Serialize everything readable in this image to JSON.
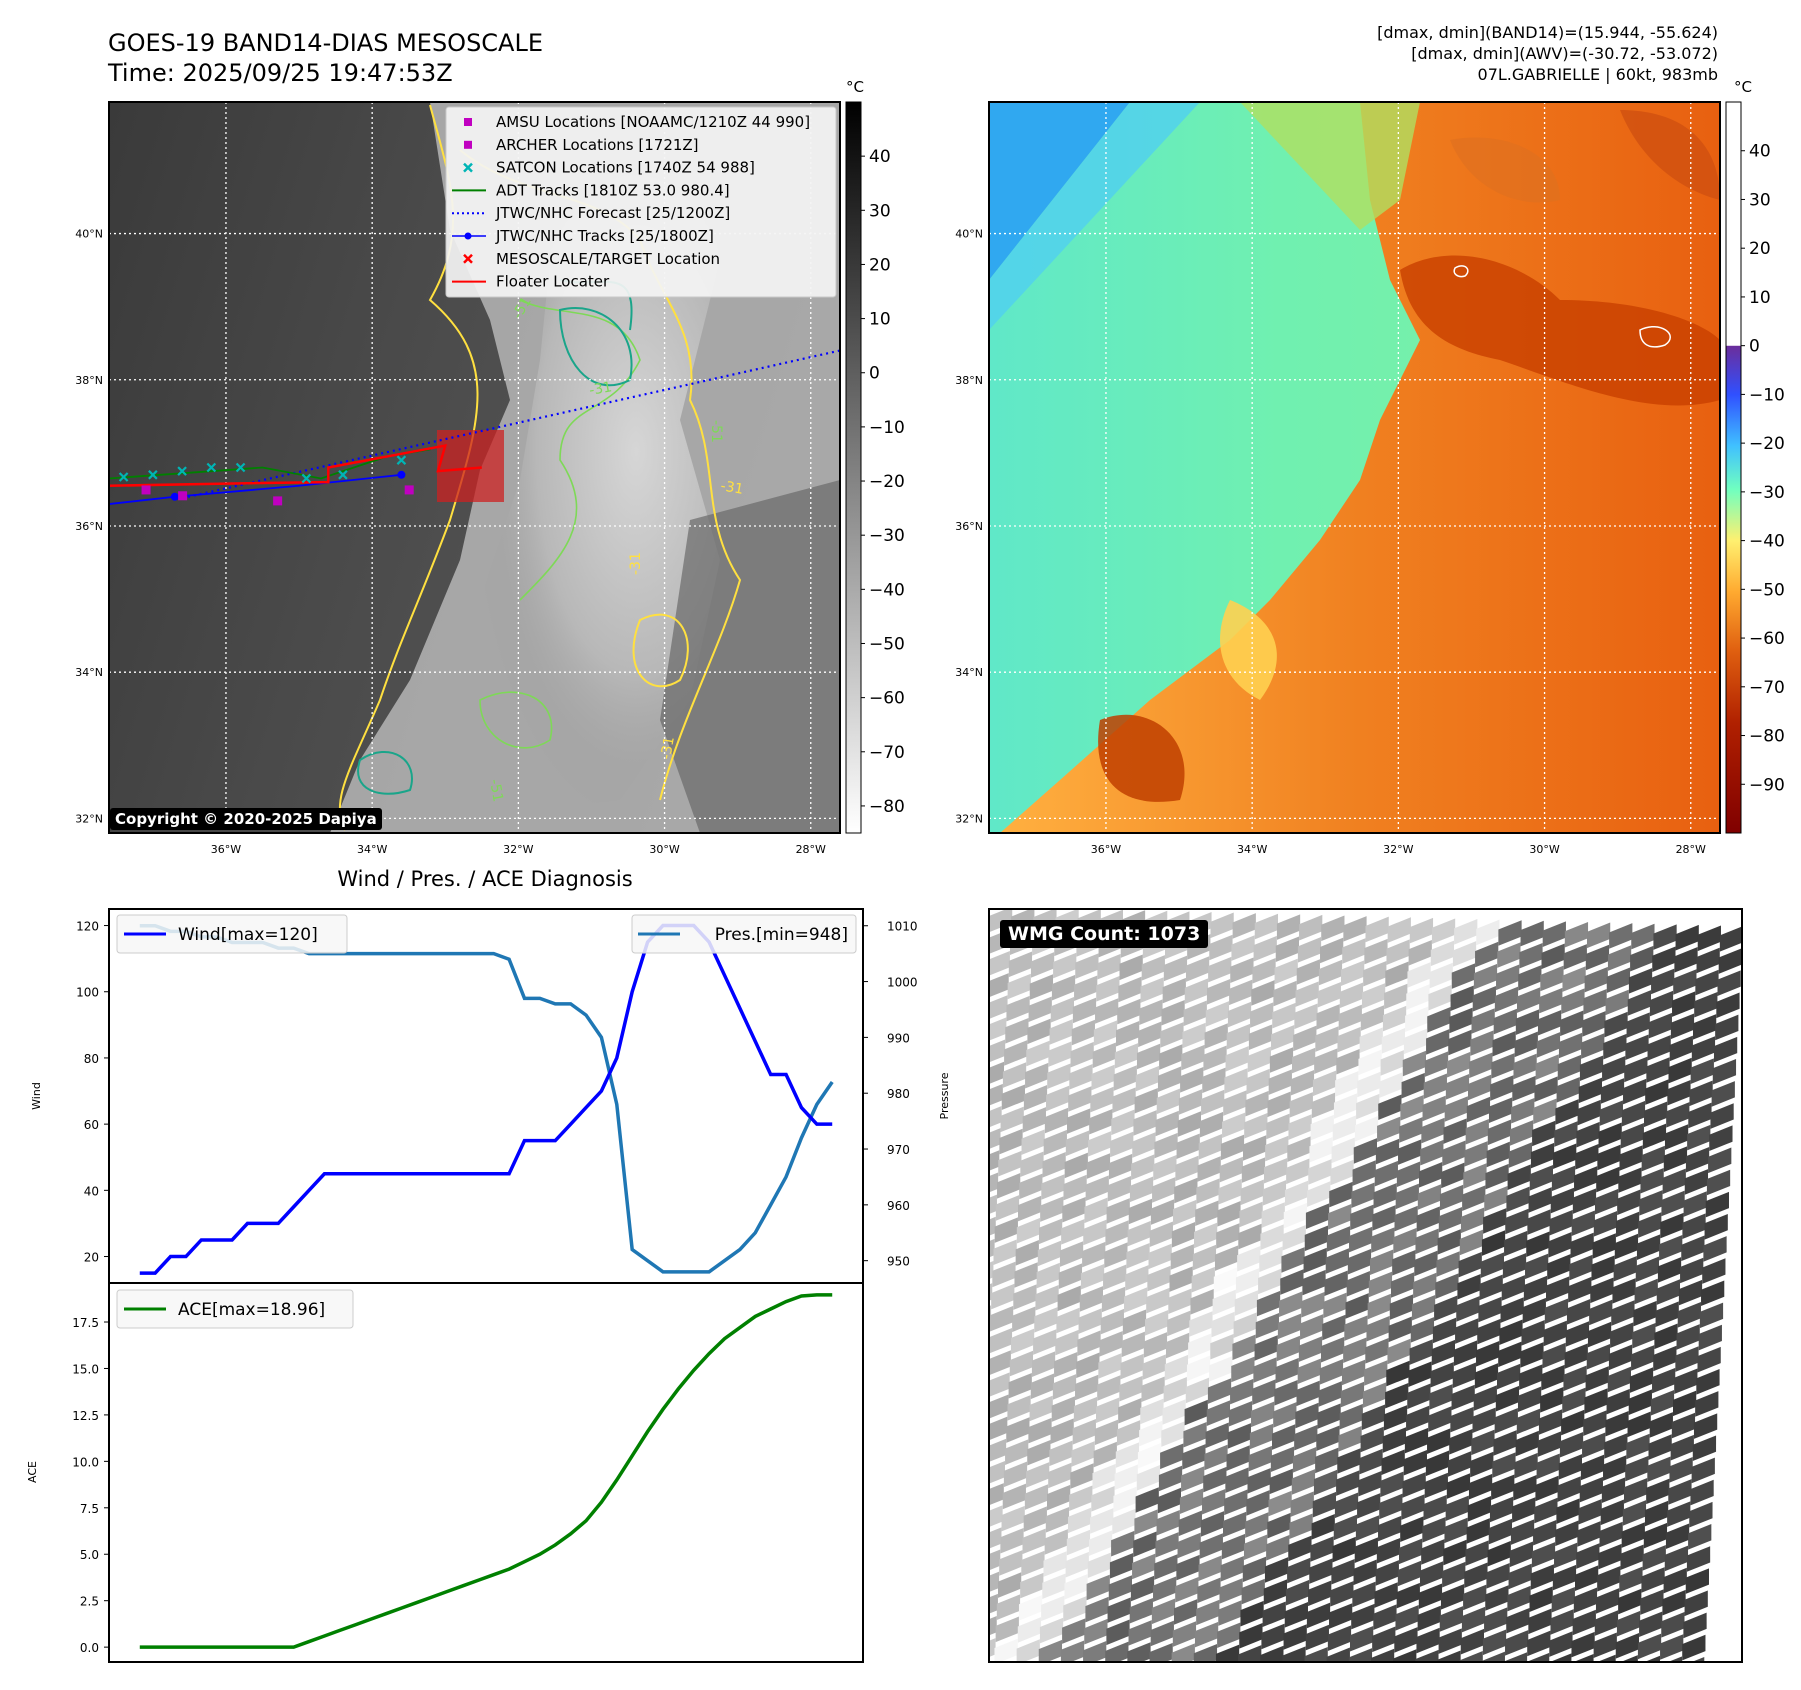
{
  "header": {
    "title_line1": "GOES-19 BAND14-DIAS MESOSCALE",
    "title_line2": "Time: 2025/09/25 19:47:53Z",
    "info_line1": "[dmax, dmin](BAND14)=(15.944, -55.624)",
    "info_line2": "[dmax, dmin](AWV)=(-30.72, -53.072)",
    "info_line3": "07L.GABRIELLE | 60kt, 983mb"
  },
  "map_axes": {
    "lat_labels": [
      "40°N",
      "38°N",
      "36°N",
      "34°N",
      "32°N"
    ],
    "lat_values": [
      40,
      38,
      36,
      34,
      32
    ],
    "lon_labels": [
      "36°W",
      "34°W",
      "32°W",
      "30°W",
      "28°W"
    ],
    "lon_values": [
      -36,
      -34,
      -32,
      -30,
      -28
    ],
    "lon_range": [
      -37.6,
      -27.6
    ],
    "lat_range": [
      31.8,
      41.8
    ]
  },
  "ir_panel": {
    "copyright": "Copyright © 2020-2025 Dapiya",
    "colorbar_unit": "°C",
    "colorbar_ticks": [
      "40",
      "30",
      "20",
      "10",
      "0",
      "−10",
      "−20",
      "−30",
      "−40",
      "−50",
      "−60",
      "−70",
      "−80"
    ],
    "colorbar_values": [
      40,
      30,
      20,
      10,
      0,
      -10,
      -20,
      -30,
      -40,
      -50,
      -60,
      -70,
      -80
    ],
    "colorbar_range": [
      -85,
      50
    ],
    "contour_labels": [
      "-51",
      "-31",
      "-51",
      "-31",
      "-31",
      "-51",
      "-31"
    ],
    "legend": [
      {
        "label": "AMSU Locations [NOAAMC/1210Z 44 990]",
        "marker": "square",
        "color": "#c000c0"
      },
      {
        "label": "ARCHER Locations [1721Z]",
        "marker": "square",
        "color": "#c000c0"
      },
      {
        "label": "SATCON Locations [1740Z 54 988]",
        "marker": "x",
        "color": "#00b5b5"
      },
      {
        "label": "ADT Tracks [1810Z 53.0 980.4]",
        "marker": "line",
        "color": "#008000"
      },
      {
        "label": "JTWC/NHC Forecast [25/1200Z]",
        "marker": "dotted",
        "color": "#0000ff"
      },
      {
        "label": "JTWC/NHC Tracks [25/1800Z]",
        "marker": "line-dot",
        "color": "#0000ff"
      },
      {
        "label": "MESOSCALE/TARGET Location",
        "marker": "x",
        "color": "#ff0000"
      },
      {
        "label": "Floater Locater",
        "marker": "line",
        "color": "#ff0000"
      }
    ]
  },
  "wv_panel": {
    "colorbar_unit": "°C",
    "colorbar_ticks": [
      "40",
      "30",
      "20",
      "10",
      "0",
      "−10",
      "−20",
      "−30",
      "−40",
      "−50",
      "−60",
      "−70",
      "−80",
      "−90"
    ],
    "colorbar_values": [
      40,
      30,
      20,
      10,
      0,
      -10,
      -20,
      -30,
      -40,
      -50,
      -60,
      -70,
      -80,
      -90
    ],
    "colorbar_range": [
      -100,
      50
    ]
  },
  "wmg_panel": {
    "badge": "WMG Count: 1073"
  },
  "chart_data": [
    {
      "type": "line",
      "title": "Wind / Pres. / ACE Diagnosis",
      "ylabel": "Wind",
      "ylabel_right": "Pressure",
      "ylim": [
        12,
        125
      ],
      "ylim_right": [
        946,
        1013
      ],
      "yticks": [
        20,
        40,
        60,
        80,
        100,
        120
      ],
      "yticks_right": [
        950,
        960,
        970,
        980,
        990,
        1000,
        1010
      ],
      "x": [
        0,
        1,
        2,
        3,
        4,
        5,
        6,
        7,
        8,
        9,
        10,
        11,
        12,
        13,
        14,
        15,
        16,
        17,
        18,
        19,
        20,
        21,
        22,
        23,
        24,
        25,
        26,
        27,
        28,
        29,
        30,
        31,
        32,
        33,
        34,
        35,
        36,
        37,
        38,
        39,
        40,
        41,
        42,
        43,
        44,
        45
      ],
      "series": [
        {
          "name": "Wind[max=120]",
          "color": "#0000ff",
          "values": [
            15,
            15,
            20,
            20,
            25,
            25,
            25,
            30,
            30,
            30,
            35,
            40,
            45,
            45,
            45,
            45,
            45,
            45,
            45,
            45,
            45,
            45,
            45,
            45,
            45,
            55,
            55,
            55,
            60,
            65,
            70,
            80,
            100,
            115,
            120,
            120,
            120,
            115,
            105,
            95,
            85,
            75,
            75,
            65,
            60,
            60
          ]
        },
        {
          "name": "Pres.[min=948]",
          "color": "#1f77b4",
          "values": [
            1010,
            1010,
            1009,
            1009,
            1008,
            1008,
            1007,
            1007,
            1007,
            1006,
            1006,
            1005,
            1005,
            1005,
            1005,
            1005,
            1005,
            1005,
            1005,
            1005,
            1005,
            1005,
            1005,
            1005,
            1004,
            997,
            997,
            996,
            996,
            994,
            990,
            978,
            952,
            950,
            948,
            948,
            948,
            948,
            950,
            952,
            955,
            960,
            965,
            972,
            978,
            982
          ]
        }
      ]
    },
    {
      "type": "line",
      "ylabel": "ACE",
      "ylim": [
        -0.8,
        19.6
      ],
      "yticks": [
        "0.0",
        "2.5",
        "5.0",
        "7.5",
        "10.0",
        "12.5",
        "15.0",
        "17.5"
      ],
      "ytick_values": [
        0,
        2.5,
        5,
        7.5,
        10,
        12.5,
        15,
        17.5
      ],
      "x": [
        0,
        1,
        2,
        3,
        4,
        5,
        6,
        7,
        8,
        9,
        10,
        11,
        12,
        13,
        14,
        15,
        16,
        17,
        18,
        19,
        20,
        21,
        22,
        23,
        24,
        25,
        26,
        27,
        28,
        29,
        30,
        31,
        32,
        33,
        34,
        35,
        36,
        37,
        38,
        39,
        40,
        41,
        42,
        43,
        44,
        45
      ],
      "series": [
        {
          "name": "ACE[max=18.96]",
          "color": "#008000",
          "values": [
            0,
            0,
            0,
            0,
            0,
            0,
            0,
            0,
            0,
            0,
            0,
            0.3,
            0.6,
            0.9,
            1.2,
            1.5,
            1.8,
            2.1,
            2.4,
            2.7,
            3.0,
            3.3,
            3.6,
            3.9,
            4.2,
            4.6,
            5.0,
            5.5,
            6.1,
            6.8,
            7.8,
            9.0,
            10.3,
            11.6,
            12.8,
            13.9,
            14.9,
            15.8,
            16.6,
            17.2,
            17.8,
            18.2,
            18.6,
            18.9,
            18.96,
            18.96
          ]
        }
      ]
    }
  ]
}
